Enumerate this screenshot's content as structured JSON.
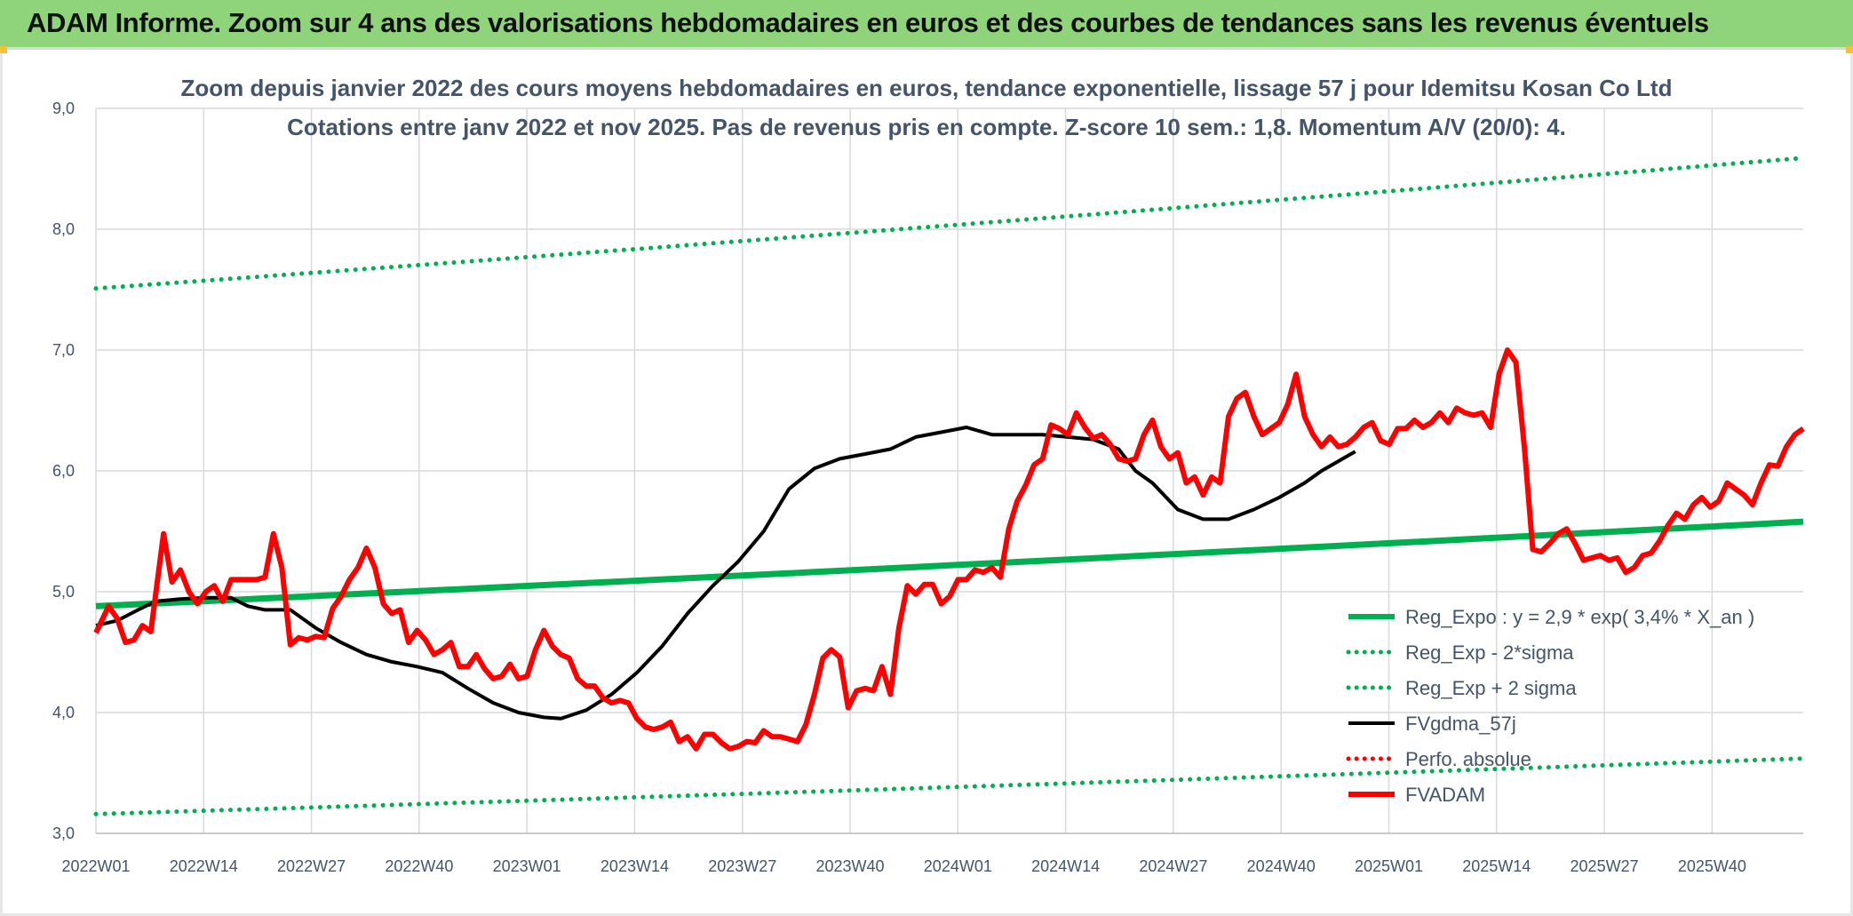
{
  "banner": {
    "title": "ADAM Informe. Zoom sur 4 ans des valorisations hebdomadaires en euros et des courbes de tendances sans les revenus éventuels"
  },
  "colors": {
    "banner_bg": "#8fd47a",
    "trend": "#00b050",
    "smooth": "#000000",
    "price": "#ff0000",
    "perf": "#ff0000",
    "text": "#44546a"
  },
  "chart_data": {
    "type": "line",
    "title": "Zoom depuis janvier 2022 des cours moyens hebdomadaires en euros, tendance exponentielle, lissage 57 j pour Idemitsu Kosan Co Ltd",
    "subtitle": "Cotations entre janv 2022 et nov 2025. Pas de revenus pris en compte. Z-score 10 sem.: 1,8. Momentum A/V (20/0): 4.",
    "xlabel": "",
    "ylabel": "",
    "ylim": [
      3.0,
      9.0
    ],
    "y_ticks": [
      "3,0",
      "4,0",
      "5,0",
      "6,0",
      "7,0",
      "8,0",
      "9,0"
    ],
    "x_tick_labels": [
      "2022W01",
      "2022W14",
      "2022W27",
      "2022W40",
      "2023W01",
      "2023W14",
      "2023W27",
      "2023W40",
      "2024W01",
      "2024W14",
      "2024W27",
      "2024W40",
      "2025W01",
      "2025W14",
      "2025W27",
      "2025W40"
    ],
    "week_count": 206,
    "tick_every_weeks": 13,
    "legend_position": "bottom-right",
    "legend": [
      {
        "key": "reg_expo",
        "label": "Reg_Expo : y = 2,9 * exp( 3,4% *  X_an )",
        "style": "solid",
        "color": "#00b050"
      },
      {
        "key": "reg_minus",
        "label": "Reg_Exp - 2*sigma",
        "style": "dotted",
        "color": "#00b050"
      },
      {
        "key": "reg_plus",
        "label": "Reg_Exp + 2 sigma",
        "style": "dotted",
        "color": "#00b050"
      },
      {
        "key": "fvgdma",
        "label": "FVgdma_57j",
        "style": "solid",
        "color": "#000000"
      },
      {
        "key": "perfo",
        "label": "Perfo. absolue",
        "style": "dotted",
        "color": "#ff0000"
      },
      {
        "key": "fvadam",
        "label": "FVADAM",
        "style": "solid",
        "color": "#ff0000"
      }
    ],
    "series": [
      {
        "name": "Reg_Expo",
        "start": 4.88,
        "end": 5.58
      },
      {
        "name": "Reg_Exp + 2 sigma",
        "start": 7.51,
        "end": 8.59
      },
      {
        "name": "Reg_Exp - 2*sigma",
        "start": 3.16,
        "end": 3.62
      },
      {
        "name": "FVgdma_57j",
        "points": [
          [
            0,
            4.72
          ],
          [
            5,
            4.76
          ],
          [
            10,
            4.85
          ],
          [
            14,
            4.92
          ],
          [
            20,
            4.94
          ],
          [
            26,
            4.95
          ],
          [
            32,
            4.95
          ],
          [
            36,
            4.88
          ],
          [
            40,
            4.85
          ],
          [
            46,
            4.85
          ],
          [
            52,
            4.7
          ],
          [
            58,
            4.58
          ],
          [
            64,
            4.48
          ],
          [
            70,
            4.42
          ],
          [
            76,
            4.38
          ],
          [
            82,
            4.33
          ],
          [
            88,
            4.2
          ],
          [
            94,
            4.08
          ],
          [
            100,
            4.0
          ],
          [
            106,
            3.96
          ],
          [
            110,
            3.95
          ],
          [
            116,
            4.02
          ],
          [
            122,
            4.15
          ],
          [
            128,
            4.33
          ],
          [
            134,
            4.55
          ],
          [
            140,
            4.82
          ],
          [
            146,
            5.05
          ],
          [
            152,
            5.25
          ],
          [
            158,
            5.5
          ],
          [
            164,
            5.85
          ],
          [
            170,
            6.02
          ],
          [
            176,
            6.1
          ],
          [
            182,
            6.14
          ],
          [
            188,
            6.18
          ],
          [
            194,
            6.28
          ],
          [
            200,
            6.32
          ],
          [
            206,
            6.36
          ],
          [
            212,
            6.3
          ],
          [
            218,
            6.3
          ],
          [
            224,
            6.3
          ],
          [
            230,
            6.28
          ],
          [
            236,
            6.26
          ],
          [
            242,
            6.18
          ],
          [
            246,
            6.0
          ],
          [
            250,
            5.9
          ],
          [
            256,
            5.68
          ],
          [
            262,
            5.6
          ],
          [
            268,
            5.6
          ],
          [
            274,
            5.68
          ],
          [
            280,
            5.78
          ],
          [
            286,
            5.9
          ],
          [
            290,
            6.0
          ],
          [
            294,
            6.08
          ],
          [
            298,
            6.16
          ]
        ]
      },
      {
        "name": "FVADAM",
        "points": [
          [
            0,
            4.66
          ],
          [
            3,
            4.88
          ],
          [
            5,
            4.78
          ],
          [
            7,
            4.58
          ],
          [
            9,
            4.6
          ],
          [
            11,
            4.72
          ],
          [
            13,
            4.67
          ],
          [
            16,
            5.48
          ],
          [
            18,
            5.08
          ],
          [
            20,
            5.18
          ],
          [
            22,
            5.0
          ],
          [
            24,
            4.9
          ],
          [
            26,
            5.0
          ],
          [
            28,
            5.05
          ],
          [
            30,
            4.92
          ],
          [
            32,
            5.1
          ],
          [
            34,
            5.1
          ],
          [
            36,
            5.1
          ],
          [
            38,
            5.1
          ],
          [
            40,
            5.12
          ],
          [
            42,
            5.48
          ],
          [
            44,
            5.2
          ],
          [
            46,
            4.56
          ],
          [
            48,
            4.62
          ],
          [
            50,
            4.6
          ],
          [
            52,
            4.63
          ],
          [
            54,
            4.62
          ],
          [
            56,
            4.86
          ],
          [
            58,
            4.96
          ],
          [
            60,
            5.1
          ],
          [
            62,
            5.2
          ],
          [
            64,
            5.36
          ],
          [
            66,
            5.2
          ],
          [
            68,
            4.9
          ],
          [
            70,
            4.82
          ],
          [
            72,
            4.85
          ],
          [
            74,
            4.58
          ],
          [
            76,
            4.68
          ],
          [
            78,
            4.6
          ],
          [
            80,
            4.48
          ],
          [
            82,
            4.52
          ],
          [
            84,
            4.58
          ],
          [
            86,
            4.38
          ],
          [
            88,
            4.38
          ],
          [
            90,
            4.48
          ],
          [
            92,
            4.36
          ],
          [
            94,
            4.28
          ],
          [
            96,
            4.3
          ],
          [
            98,
            4.4
          ],
          [
            100,
            4.28
          ],
          [
            102,
            4.3
          ],
          [
            104,
            4.52
          ],
          [
            106,
            4.68
          ],
          [
            108,
            4.55
          ],
          [
            110,
            4.48
          ],
          [
            112,
            4.45
          ],
          [
            114,
            4.28
          ],
          [
            116,
            4.22
          ],
          [
            118,
            4.22
          ],
          [
            120,
            4.12
          ],
          [
            122,
            4.08
          ],
          [
            124,
            4.1
          ],
          [
            126,
            4.08
          ],
          [
            128,
            3.95
          ],
          [
            130,
            3.88
          ],
          [
            132,
            3.86
          ],
          [
            134,
            3.88
          ],
          [
            136,
            3.92
          ],
          [
            138,
            3.76
          ],
          [
            140,
            3.8
          ],
          [
            142,
            3.7
          ],
          [
            144,
            3.82
          ],
          [
            146,
            3.82
          ],
          [
            148,
            3.75
          ],
          [
            150,
            3.7
          ],
          [
            152,
            3.72
          ],
          [
            154,
            3.76
          ],
          [
            156,
            3.75
          ],
          [
            158,
            3.85
          ],
          [
            160,
            3.8
          ],
          [
            162,
            3.8
          ],
          [
            164,
            3.78
          ],
          [
            166,
            3.76
          ],
          [
            168,
            3.9
          ],
          [
            170,
            4.15
          ],
          [
            172,
            4.45
          ],
          [
            174,
            4.52
          ],
          [
            176,
            4.46
          ],
          [
            178,
            4.04
          ],
          [
            180,
            4.18
          ],
          [
            182,
            4.2
          ],
          [
            184,
            4.18
          ],
          [
            186,
            4.38
          ],
          [
            188,
            4.15
          ],
          [
            190,
            4.7
          ],
          [
            192,
            5.05
          ],
          [
            194,
            4.98
          ],
          [
            196,
            5.06
          ],
          [
            198,
            5.06
          ],
          [
            200,
            4.9
          ],
          [
            202,
            4.96
          ],
          [
            204,
            5.1
          ],
          [
            206,
            5.1
          ],
          [
            208,
            5.18
          ],
          [
            210,
            5.16
          ],
          [
            212,
            5.2
          ],
          [
            214,
            5.12
          ],
          [
            216,
            5.52
          ],
          [
            218,
            5.75
          ],
          [
            220,
            5.88
          ],
          [
            222,
            6.05
          ],
          [
            224,
            6.1
          ],
          [
            226,
            6.38
          ],
          [
            228,
            6.35
          ],
          [
            230,
            6.3
          ],
          [
            232,
            6.48
          ],
          [
            234,
            6.36
          ],
          [
            236,
            6.27
          ],
          [
            238,
            6.3
          ],
          [
            240,
            6.22
          ],
          [
            242,
            6.1
          ],
          [
            244,
            6.08
          ],
          [
            246,
            6.1
          ],
          [
            248,
            6.3
          ],
          [
            250,
            6.42
          ],
          [
            252,
            6.2
          ],
          [
            254,
            6.1
          ],
          [
            256,
            6.15
          ],
          [
            258,
            5.9
          ],
          [
            260,
            5.95
          ],
          [
            262,
            5.8
          ],
          [
            264,
            5.95
          ],
          [
            266,
            5.9
          ],
          [
            268,
            6.45
          ],
          [
            270,
            6.6
          ],
          [
            272,
            6.65
          ],
          [
            274,
            6.45
          ],
          [
            276,
            6.3
          ],
          [
            278,
            6.35
          ],
          [
            280,
            6.4
          ],
          [
            282,
            6.55
          ],
          [
            284,
            6.8
          ],
          [
            286,
            6.45
          ],
          [
            288,
            6.3
          ],
          [
            290,
            6.2
          ],
          [
            292,
            6.28
          ],
          [
            294,
            6.2
          ],
          [
            296,
            6.22
          ],
          [
            298,
            6.28
          ],
          [
            300,
            6.36
          ],
          [
            302,
            6.4
          ],
          [
            304,
            6.25
          ],
          [
            306,
            6.22
          ],
          [
            308,
            6.35
          ],
          [
            310,
            6.35
          ],
          [
            312,
            6.42
          ],
          [
            314,
            6.36
          ],
          [
            316,
            6.4
          ],
          [
            318,
            6.48
          ],
          [
            320,
            6.4
          ],
          [
            322,
            6.52
          ],
          [
            324,
            6.48
          ],
          [
            326,
            6.46
          ],
          [
            328,
            6.48
          ],
          [
            330,
            6.36
          ],
          [
            332,
            6.8
          ],
          [
            334,
            7.0
          ],
          [
            336,
            6.9
          ],
          [
            338,
            6.2
          ],
          [
            340,
            5.35
          ],
          [
            342,
            5.33
          ],
          [
            344,
            5.4
          ],
          [
            346,
            5.48
          ],
          [
            348,
            5.52
          ],
          [
            350,
            5.4
          ],
          [
            352,
            5.26
          ],
          [
            354,
            5.28
          ],
          [
            356,
            5.3
          ],
          [
            358,
            5.26
          ],
          [
            360,
            5.28
          ],
          [
            362,
            5.16
          ],
          [
            364,
            5.2
          ],
          [
            366,
            5.3
          ],
          [
            368,
            5.32
          ],
          [
            370,
            5.42
          ],
          [
            372,
            5.55
          ],
          [
            374,
            5.65
          ],
          [
            376,
            5.6
          ],
          [
            378,
            5.72
          ],
          [
            380,
            5.78
          ],
          [
            382,
            5.7
          ],
          [
            384,
            5.75
          ],
          [
            386,
            5.9
          ],
          [
            388,
            5.85
          ],
          [
            390,
            5.8
          ],
          [
            392,
            5.72
          ],
          [
            394,
            5.9
          ],
          [
            396,
            6.05
          ],
          [
            398,
            6.04
          ],
          [
            400,
            6.2
          ],
          [
            402,
            6.3
          ],
          [
            404,
            6.35
          ]
        ]
      }
    ]
  }
}
